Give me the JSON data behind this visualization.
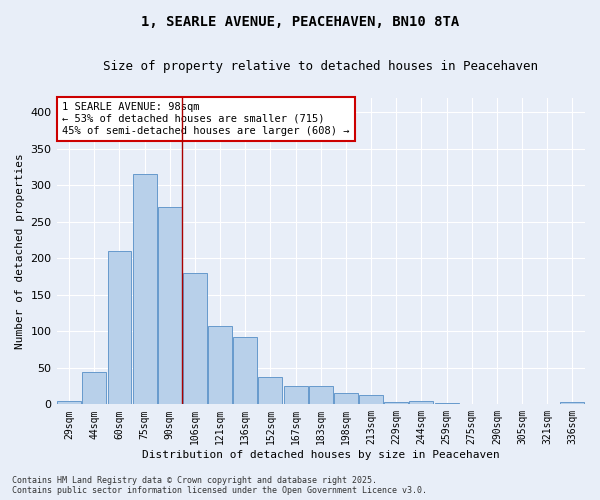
{
  "title1": "1, SEARLE AVENUE, PEACEHAVEN, BN10 8TA",
  "title2": "Size of property relative to detached houses in Peacehaven",
  "xlabel": "Distribution of detached houses by size in Peacehaven",
  "ylabel": "Number of detached properties",
  "categories": [
    "29sqm",
    "44sqm",
    "60sqm",
    "75sqm",
    "90sqm",
    "106sqm",
    "121sqm",
    "136sqm",
    "152sqm",
    "167sqm",
    "183sqm",
    "198sqm",
    "213sqm",
    "229sqm",
    "244sqm",
    "259sqm",
    "275sqm",
    "290sqm",
    "305sqm",
    "321sqm",
    "336sqm"
  ],
  "values": [
    4,
    44,
    210,
    315,
    270,
    180,
    108,
    92,
    38,
    25,
    25,
    15,
    13,
    3,
    5,
    2,
    0,
    0,
    0,
    0,
    3
  ],
  "bar_color": "#b8d0ea",
  "bar_edge_color": "#6699cc",
  "bg_color": "#e8eef8",
  "grid_color": "#ffffff",
  "vline_x": 4.5,
  "vline_color": "#aa0000",
  "annotation_text": "1 SEARLE AVENUE: 98sqm\n← 53% of detached houses are smaller (715)\n45% of semi-detached houses are larger (608) →",
  "annotation_box_color": "#ffffff",
  "annotation_box_edge": "#cc0000",
  "ylim": [
    0,
    420
  ],
  "yticks": [
    0,
    50,
    100,
    150,
    200,
    250,
    300,
    350,
    400
  ],
  "footnote1": "Contains HM Land Registry data © Crown copyright and database right 2025.",
  "footnote2": "Contains public sector information licensed under the Open Government Licence v3.0."
}
